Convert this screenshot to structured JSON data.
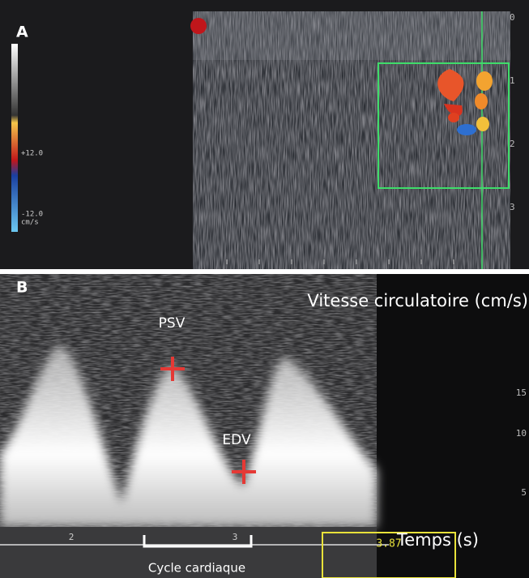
{
  "panel_a": {
    "label": "A",
    "scale_top": "+12.0",
    "scale_bottom": "-12.0",
    "scale_unit": "cm/s",
    "depth_labels": [
      "0",
      "1",
      "2",
      "3"
    ]
  },
  "panel_b": {
    "label": "B",
    "psv": "PSV",
    "edv": "EDV",
    "y_title": "Vitesse circulatoire (cm/s)",
    "y_labels": [
      "15",
      "10",
      "5"
    ],
    "x_title": "Temps (s)",
    "x_labels": [
      "2",
      "3"
    ],
    "cycle": "Cycle cardiaque",
    "readout": "3.87"
  }
}
